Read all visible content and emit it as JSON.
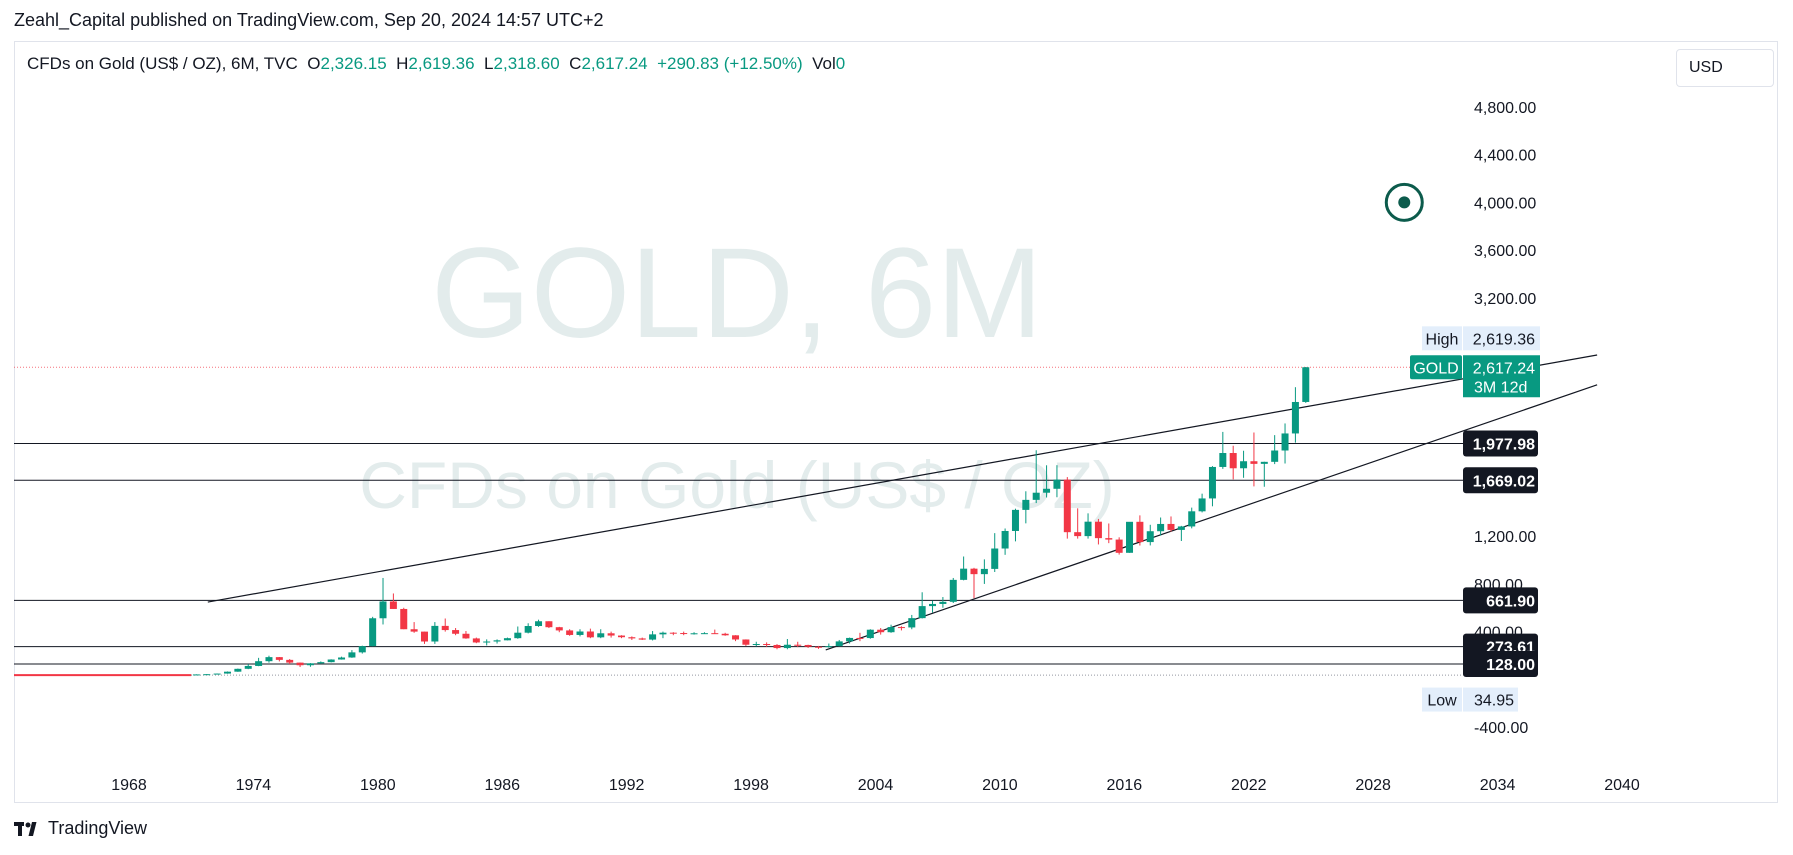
{
  "header": {
    "attribution": "Zeahl_Capital published on TradingView.com, Sep 20, 2024 14:57 UTC+2"
  },
  "legend": {
    "symbol": "CFDs on Gold (US$ / OZ), 6M, TVC",
    "o_label": "O",
    "o_value": "2,326.15",
    "h_label": "H",
    "h_value": "2,619.36",
    "l_label": "L",
    "l_value": "2,318.60",
    "c_label": "C",
    "c_value": "2,617.24",
    "change": "+290.83 (+12.50%)",
    "vol_label": "Vol",
    "vol_value": "0"
  },
  "currency": "USD",
  "watermark": {
    "main": "GOLD, 6M",
    "sub": "CFDs on Gold (US$ / OZ)"
  },
  "footer": {
    "brand": "TradingView",
    "logo_icon": "tradingview-logo-icon"
  },
  "colors": {
    "up": "#089981",
    "down": "#f23645",
    "line": "#131722",
    "watermark": "#e3ecec",
    "label_dark": "#131722",
    "label_light": "#e3eefb"
  },
  "chart_data": {
    "type": "candlestick",
    "title": "GOLD, 6M",
    "ylim": [
      -400,
      4800
    ],
    "y_ticks": [
      "-400.00",
      "400.00",
      "800.00",
      "1,200.00",
      "3,200.00",
      "3,600.00",
      "4,000.00",
      "4,400.00",
      "4,800.00"
    ],
    "x_ticks": [
      "1968",
      "1974",
      "1980",
      "1986",
      "1992",
      "1998",
      "2004",
      "2010",
      "2016",
      "2022",
      "2028",
      "2034",
      "2040"
    ],
    "candles": [
      {
        "t": 1971.0,
        "o": 38,
        "h": 42,
        "l": 37,
        "c": 41
      },
      {
        "t": 1971.5,
        "o": 41,
        "h": 44,
        "l": 40,
        "c": 43
      },
      {
        "t": 1972.0,
        "o": 43,
        "h": 49,
        "l": 43,
        "c": 48
      },
      {
        "t": 1972.5,
        "o": 48,
        "h": 66,
        "l": 47,
        "c": 64
      },
      {
        "t": 1973.0,
        "o": 64,
        "h": 90,
        "l": 63,
        "c": 88
      },
      {
        "t": 1973.5,
        "o": 88,
        "h": 127,
        "l": 85,
        "c": 112
      },
      {
        "t": 1974.0,
        "o": 112,
        "h": 180,
        "l": 110,
        "c": 152
      },
      {
        "t": 1974.5,
        "o": 152,
        "h": 198,
        "l": 140,
        "c": 186
      },
      {
        "t": 1975.0,
        "o": 186,
        "h": 187,
        "l": 150,
        "c": 163
      },
      {
        "t": 1975.5,
        "o": 163,
        "h": 170,
        "l": 128,
        "c": 140
      },
      {
        "t": 1976.0,
        "o": 140,
        "h": 141,
        "l": 103,
        "c": 118
      },
      {
        "t": 1976.5,
        "o": 118,
        "h": 136,
        "l": 105,
        "c": 134
      },
      {
        "t": 1977.0,
        "o": 134,
        "h": 150,
        "l": 130,
        "c": 144
      },
      {
        "t": 1977.5,
        "o": 144,
        "h": 168,
        "l": 142,
        "c": 166
      },
      {
        "t": 1978.0,
        "o": 166,
        "h": 190,
        "l": 165,
        "c": 183
      },
      {
        "t": 1978.5,
        "o": 183,
        "h": 245,
        "l": 180,
        "c": 226
      },
      {
        "t": 1979.0,
        "o": 226,
        "h": 282,
        "l": 216,
        "c": 278
      },
      {
        "t": 1979.5,
        "o": 278,
        "h": 524,
        "l": 275,
        "c": 512
      },
      {
        "t": 1980.0,
        "o": 512,
        "h": 850,
        "l": 460,
        "c": 653
      },
      {
        "t": 1980.5,
        "o": 653,
        "h": 720,
        "l": 590,
        "c": 590
      },
      {
        "t": 1981.0,
        "o": 590,
        "h": 600,
        "l": 420,
        "c": 420
      },
      {
        "t": 1981.5,
        "o": 420,
        "h": 480,
        "l": 390,
        "c": 400
      },
      {
        "t": 1982.0,
        "o": 400,
        "h": 400,
        "l": 297,
        "c": 317
      },
      {
        "t": 1982.5,
        "o": 317,
        "h": 480,
        "l": 297,
        "c": 448
      },
      {
        "t": 1983.0,
        "o": 448,
        "h": 510,
        "l": 400,
        "c": 413
      },
      {
        "t": 1983.5,
        "o": 413,
        "h": 430,
        "l": 370,
        "c": 382
      },
      {
        "t": 1984.0,
        "o": 382,
        "h": 405,
        "l": 340,
        "c": 343
      },
      {
        "t": 1984.5,
        "o": 343,
        "h": 350,
        "l": 303,
        "c": 309
      },
      {
        "t": 1985.0,
        "o": 309,
        "h": 335,
        "l": 284,
        "c": 317
      },
      {
        "t": 1985.5,
        "o": 317,
        "h": 335,
        "l": 300,
        "c": 327
      },
      {
        "t": 1986.0,
        "o": 327,
        "h": 350,
        "l": 326,
        "c": 345
      },
      {
        "t": 1986.5,
        "o": 345,
        "h": 443,
        "l": 340,
        "c": 391
      },
      {
        "t": 1987.0,
        "o": 391,
        "h": 470,
        "l": 385,
        "c": 447
      },
      {
        "t": 1987.5,
        "o": 447,
        "h": 500,
        "l": 440,
        "c": 487
      },
      {
        "t": 1988.0,
        "o": 487,
        "h": 487,
        "l": 430,
        "c": 437
      },
      {
        "t": 1988.5,
        "o": 437,
        "h": 440,
        "l": 395,
        "c": 410
      },
      {
        "t": 1989.0,
        "o": 410,
        "h": 420,
        "l": 365,
        "c": 372
      },
      {
        "t": 1989.5,
        "o": 372,
        "h": 420,
        "l": 360,
        "c": 401
      },
      {
        "t": 1990.0,
        "o": 401,
        "h": 425,
        "l": 345,
        "c": 352
      },
      {
        "t": 1990.5,
        "o": 352,
        "h": 420,
        "l": 345,
        "c": 386
      },
      {
        "t": 1991.0,
        "o": 386,
        "h": 400,
        "l": 350,
        "c": 367
      },
      {
        "t": 1991.5,
        "o": 367,
        "h": 370,
        "l": 345,
        "c": 353
      },
      {
        "t": 1992.0,
        "o": 353,
        "h": 360,
        "l": 330,
        "c": 343
      },
      {
        "t": 1992.5,
        "o": 343,
        "h": 350,
        "l": 330,
        "c": 333
      },
      {
        "t": 1993.0,
        "o": 333,
        "h": 405,
        "l": 326,
        "c": 377
      },
      {
        "t": 1993.5,
        "o": 377,
        "h": 400,
        "l": 345,
        "c": 391
      },
      {
        "t": 1994.0,
        "o": 391,
        "h": 395,
        "l": 370,
        "c": 388
      },
      {
        "t": 1994.5,
        "o": 388,
        "h": 400,
        "l": 370,
        "c": 383
      },
      {
        "t": 1995.0,
        "o": 383,
        "h": 395,
        "l": 375,
        "c": 386
      },
      {
        "t": 1995.5,
        "o": 386,
        "h": 395,
        "l": 380,
        "c": 387
      },
      {
        "t": 1996.0,
        "o": 387,
        "h": 417,
        "l": 380,
        "c": 382
      },
      {
        "t": 1996.5,
        "o": 382,
        "h": 390,
        "l": 365,
        "c": 369
      },
      {
        "t": 1997.0,
        "o": 369,
        "h": 370,
        "l": 320,
        "c": 334
      },
      {
        "t": 1997.5,
        "o": 334,
        "h": 335,
        "l": 280,
        "c": 290
      },
      {
        "t": 1998.0,
        "o": 290,
        "h": 315,
        "l": 275,
        "c": 296
      },
      {
        "t": 1998.5,
        "o": 296,
        "h": 310,
        "l": 272,
        "c": 288
      },
      {
        "t": 1999.0,
        "o": 288,
        "h": 295,
        "l": 252,
        "c": 262
      },
      {
        "t": 1999.5,
        "o": 262,
        "h": 338,
        "l": 252,
        "c": 290
      },
      {
        "t": 2000.0,
        "o": 290,
        "h": 315,
        "l": 270,
        "c": 288
      },
      {
        "t": 2000.5,
        "o": 288,
        "h": 290,
        "l": 263,
        "c": 273
      },
      {
        "t": 2001.0,
        "o": 273,
        "h": 280,
        "l": 255,
        "c": 271
      },
      {
        "t": 2001.5,
        "o": 271,
        "h": 300,
        "l": 265,
        "c": 278
      },
      {
        "t": 2002.0,
        "o": 278,
        "h": 330,
        "l": 277,
        "c": 318
      },
      {
        "t": 2002.5,
        "o": 318,
        "h": 350,
        "l": 300,
        "c": 347
      },
      {
        "t": 2003.0,
        "o": 347,
        "h": 390,
        "l": 320,
        "c": 346
      },
      {
        "t": 2003.5,
        "o": 346,
        "h": 420,
        "l": 340,
        "c": 416
      },
      {
        "t": 2004.0,
        "o": 416,
        "h": 430,
        "l": 375,
        "c": 395
      },
      {
        "t": 2004.5,
        "o": 395,
        "h": 458,
        "l": 390,
        "c": 438
      },
      {
        "t": 2005.0,
        "o": 438,
        "h": 445,
        "l": 410,
        "c": 435
      },
      {
        "t": 2005.5,
        "o": 435,
        "h": 540,
        "l": 420,
        "c": 513
      },
      {
        "t": 2006.0,
        "o": 513,
        "h": 730,
        "l": 510,
        "c": 614
      },
      {
        "t": 2006.5,
        "o": 614,
        "h": 660,
        "l": 560,
        "c": 632
      },
      {
        "t": 2007.0,
        "o": 632,
        "h": 690,
        "l": 600,
        "c": 650
      },
      {
        "t": 2007.5,
        "o": 650,
        "h": 850,
        "l": 640,
        "c": 834
      },
      {
        "t": 2008.0,
        "o": 834,
        "h": 1030,
        "l": 830,
        "c": 928
      },
      {
        "t": 2008.5,
        "o": 928,
        "h": 935,
        "l": 680,
        "c": 882
      },
      {
        "t": 2009.0,
        "o": 882,
        "h": 1006,
        "l": 800,
        "c": 926
      },
      {
        "t": 2009.5,
        "o": 926,
        "h": 1226,
        "l": 900,
        "c": 1097
      },
      {
        "t": 2010.0,
        "o": 1097,
        "h": 1265,
        "l": 1044,
        "c": 1244
      },
      {
        "t": 2010.5,
        "o": 1244,
        "h": 1431,
        "l": 1157,
        "c": 1421
      },
      {
        "t": 2011.0,
        "o": 1421,
        "h": 1577,
        "l": 1308,
        "c": 1505
      },
      {
        "t": 2011.5,
        "o": 1505,
        "h": 1921,
        "l": 1478,
        "c": 1565
      },
      {
        "t": 2012.0,
        "o": 1565,
        "h": 1795,
        "l": 1525,
        "c": 1598
      },
      {
        "t": 2012.5,
        "o": 1598,
        "h": 1796,
        "l": 1527,
        "c": 1675
      },
      {
        "t": 2013.0,
        "o": 1675,
        "h": 1696,
        "l": 1180,
        "c": 1234
      },
      {
        "t": 2013.5,
        "o": 1234,
        "h": 1434,
        "l": 1180,
        "c": 1201
      },
      {
        "t": 2014.0,
        "o": 1201,
        "h": 1392,
        "l": 1180,
        "c": 1322
      },
      {
        "t": 2014.5,
        "o": 1322,
        "h": 1345,
        "l": 1131,
        "c": 1184
      },
      {
        "t": 2015.0,
        "o": 1184,
        "h": 1307,
        "l": 1142,
        "c": 1172
      },
      {
        "t": 2015.5,
        "o": 1172,
        "h": 1191,
        "l": 1046,
        "c": 1061
      },
      {
        "t": 2016.0,
        "o": 1061,
        "h": 1303,
        "l": 1061,
        "c": 1321
      },
      {
        "t": 2016.5,
        "o": 1321,
        "h": 1375,
        "l": 1122,
        "c": 1151
      },
      {
        "t": 2017.0,
        "o": 1151,
        "h": 1296,
        "l": 1123,
        "c": 1242
      },
      {
        "t": 2017.5,
        "o": 1242,
        "h": 1357,
        "l": 1205,
        "c": 1303
      },
      {
        "t": 2018.0,
        "o": 1303,
        "h": 1366,
        "l": 1238,
        "c": 1253
      },
      {
        "t": 2018.5,
        "o": 1253,
        "h": 1287,
        "l": 1160,
        "c": 1282
      },
      {
        "t": 2019.0,
        "o": 1282,
        "h": 1440,
        "l": 1266,
        "c": 1409
      },
      {
        "t": 2019.5,
        "o": 1409,
        "h": 1557,
        "l": 1400,
        "c": 1517
      },
      {
        "t": 2020.0,
        "o": 1517,
        "h": 1788,
        "l": 1451,
        "c": 1781
      },
      {
        "t": 2020.5,
        "o": 1781,
        "h": 2075,
        "l": 1765,
        "c": 1898
      },
      {
        "t": 2021.0,
        "o": 1898,
        "h": 1959,
        "l": 1677,
        "c": 1770
      },
      {
        "t": 2021.5,
        "o": 1770,
        "h": 1917,
        "l": 1690,
        "c": 1829
      },
      {
        "t": 2022.0,
        "o": 1829,
        "h": 2070,
        "l": 1618,
        "c": 1807
      },
      {
        "t": 2022.5,
        "o": 1807,
        "h": 1825,
        "l": 1615,
        "c": 1824
      },
      {
        "t": 2023.0,
        "o": 1824,
        "h": 2048,
        "l": 1805,
        "c": 1919
      },
      {
        "t": 2023.5,
        "o": 1919,
        "h": 2146,
        "l": 1810,
        "c": 2062
      },
      {
        "t": 2024.0,
        "o": 2062,
        "h": 2450,
        "l": 1985,
        "c": 2326
      },
      {
        "t": 2024.5,
        "o": 2326.15,
        "h": 2619.36,
        "l": 2318.6,
        "c": 2617.24
      }
    ],
    "early_flat": {
      "from": 1962.5,
      "to": 1971.0,
      "value": 35
    },
    "horizontal_levels": [
      {
        "value": 1977.98,
        "label": "1,977.98"
      },
      {
        "value": 1669.02,
        "label": "1,669.02"
      },
      {
        "value": 661.9,
        "label": "661.90"
      },
      {
        "value": 273.61,
        "label": "273.61"
      },
      {
        "value": 128.0,
        "label": "128.00"
      }
    ],
    "trendlines": [
      {
        "name": "upper",
        "x1": 1971.8,
        "y1": 648,
        "x2": 2038.8,
        "y2": 2720
      },
      {
        "name": "lower",
        "x1": 2001.6,
        "y1": 246,
        "x2": 2038.8,
        "y2": 2470
      }
    ],
    "high_label": {
      "text": "High",
      "value": "2,619.36",
      "y": 2860
    },
    "price_label": {
      "symbol": "GOLD",
      "value": "2,617.24",
      "countdown": "3M 12d",
      "y": 2617.24
    },
    "low_label": {
      "text": "Low",
      "value": "34.95",
      "y": -170
    },
    "target_marker": {
      "x": 2029.5,
      "y": 4000
    }
  }
}
